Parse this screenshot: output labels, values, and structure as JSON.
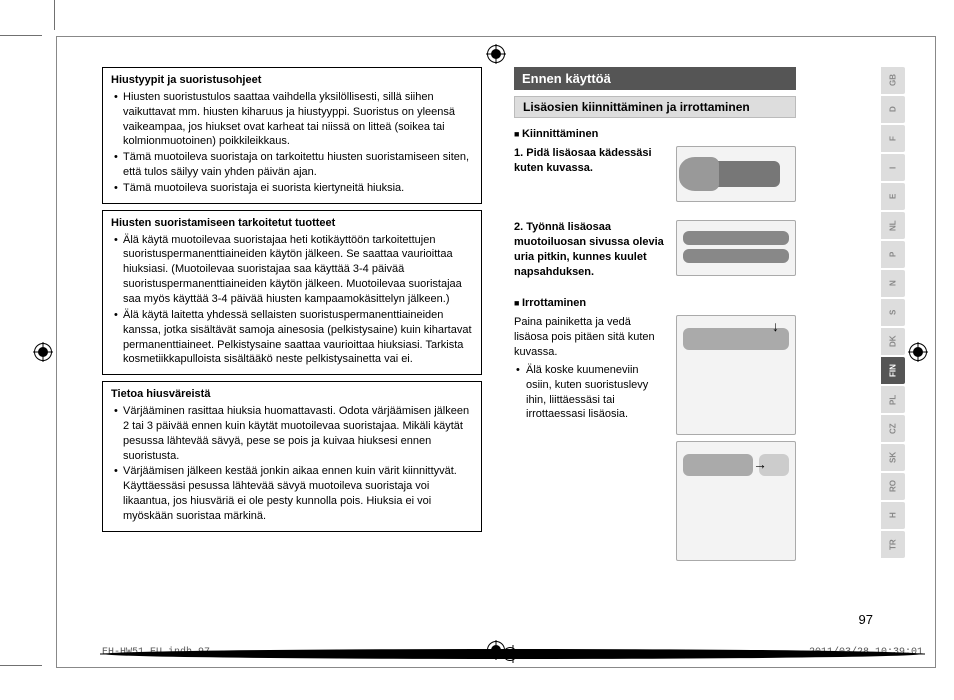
{
  "left": {
    "box1": {
      "title": "Hiustyypit ja suoristusohjeet",
      "items": [
        "Hiusten suoristustulos saattaa vaihdella yksilöllisesti, sillä siihen vaikuttavat mm. hiusten kiharuus ja hiustyyppi. Suoristus on yleensä vaikeampaa, jos hiukset ovat karheat tai niissä on litteä (soikea tai kolmionmuotoinen) poikkileikkaus.",
        "Tämä muotoileva suoristaja on tarkoitettu hiusten suoristamiseen siten, että tulos säilyy vain yhden päivän ajan.",
        "Tämä muotoileva suoristaja ei suorista kiertyneitä hiuksia."
      ]
    },
    "box2": {
      "title": "Hiusten suoristamiseen tarkoitetut tuotteet",
      "items": [
        "Älä käytä muotoilevaa suoristajaa heti kotikäyttöön tarkoitettujen suoristuspermanenttiaineiden käytön jälkeen. Se saattaa vaurioittaa hiuksiasi. (Muotoilevaa suoristajaa saa käyttää 3-4 päivää suoristuspermanenttiaineiden käytön jälkeen. Muotoilevaa suoristajaa saa myös käyttää 3-4 päivää hiusten kampaamokäsittelyn jälkeen.)",
        "Älä käytä laitetta yhdessä sellaisten suoristuspermanenttiaineiden kanssa, jotka sisältävät samoja ainesosia (pelkistysaine) kuin kihartavat permanenttiaineet. Pelkistysaine saattaa vaurioittaa hiuksiasi. Tarkista kosmetiikkapulloista sisältääkö neste pelkistysainetta vai ei."
      ]
    },
    "box3": {
      "title": "Tietoa hiusväreistä",
      "items": [
        "Värjääminen rasittaa hiuksia huomattavasti. Odota värjäämisen jälkeen 2 tai 3 päivää ennen kuin käytät muotoilevaa suoristajaa. Mikäli käytät pesussa lähtevää sävyä, pese se pois ja kuivaa hiuksesi ennen suoristusta.",
        "Värjäämisen jälkeen kestää jonkin aikaa ennen kuin värit kiinnittyvät. Käyttäessäsi pesussa lähtevää sävyä muotoileva suoristaja voi likaantua, jos hiusväriä ei ole pesty kunnolla pois. Hiuksia ei voi myöskään suoristaa märkinä."
      ]
    }
  },
  "right": {
    "section_title": "Ennen käyttöä",
    "subsection": "Lisäosien kiinnittäminen ja irrottaminen",
    "attach": {
      "heading": "Kiinnittäminen",
      "steps": [
        "Pidä lisäosaa kädessäsi kuten kuvassa.",
        "Työnnä lisäosaa muotoiluosan sivussa olevia uria pitkin, kunnes kuulet napsahduksen."
      ]
    },
    "detach": {
      "heading": "Irrottaminen",
      "text": "Paina painiketta ja vedä lisäosa pois pitäen sitä kuten kuvassa.",
      "items": [
        "Älä koske kuumeneviin osiin, kuten suoristuslevy ihin, liittäessäsi tai irrottaessasi lisäosia."
      ]
    }
  },
  "langs": [
    "GB",
    "D",
    "F",
    "I",
    "E",
    "NL",
    "P",
    "N",
    "S",
    "DK",
    "FIN",
    "PL",
    "CZ",
    "SK",
    "RO",
    "H",
    "TR"
  ],
  "active_lang": "FIN",
  "page_number": "97",
  "footer": {
    "file": "EH-HW51_EU.indb   97",
    "ts": "2011/03/28   10:39:01"
  },
  "colors": {
    "dark": "#555555",
    "grey": "#dddddd"
  }
}
